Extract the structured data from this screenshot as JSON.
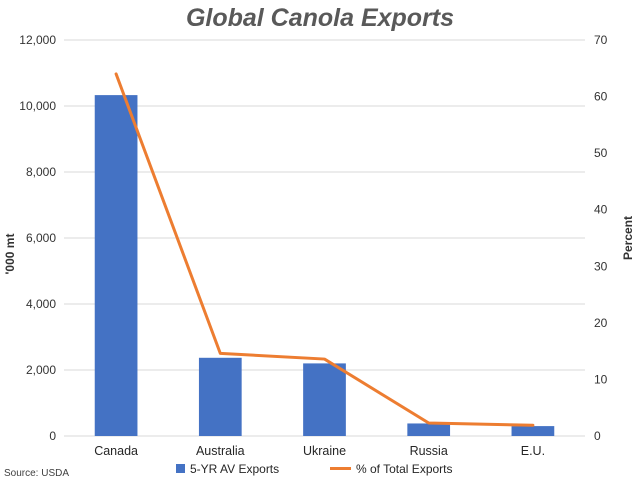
{
  "chart_data": {
    "type": "bar",
    "title": "Global Canola Exports",
    "categories": [
      "Canada",
      "Australia",
      "Ukraine",
      "Russia",
      "E.U."
    ],
    "series": [
      {
        "name": "5-YR AV Exports",
        "type": "bar",
        "axis": "left",
        "color": "#4472C4",
        "values": [
          10330,
          2370,
          2200,
          380,
          300
        ]
      },
      {
        "name": "% of Total Exports",
        "type": "line",
        "axis": "right",
        "color": "#ED7D31",
        "values": [
          64,
          14.6,
          13.6,
          2.3,
          1.9
        ]
      }
    ],
    "ylabel": "'000 mt",
    "ylabel_right": "Percent",
    "ylim": [
      0,
      12000
    ],
    "ylim_right": [
      0,
      70
    ],
    "yticks": [
      "0",
      "2,000",
      "4,000",
      "6,000",
      "8,000",
      "10,000",
      "12,000"
    ],
    "yticks_right": [
      "0",
      "10",
      "20",
      "30",
      "40",
      "50",
      "60",
      "70"
    ],
    "grid": true,
    "legend_position": "bottom",
    "source": "Source: USDA"
  }
}
